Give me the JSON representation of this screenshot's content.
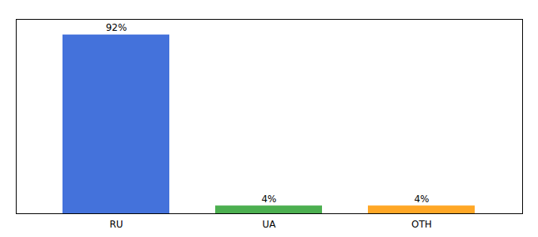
{
  "chart_data": {
    "type": "bar",
    "categories": [
      "RU",
      "UA",
      "OTH"
    ],
    "values": [
      92,
      4,
      4
    ],
    "value_labels": [
      "92%",
      "4%",
      "4%"
    ],
    "colors": [
      "#4472db",
      "#4caf50",
      "#ffa726"
    ],
    "ylim": [
      0,
      100
    ],
    "data_labels": true,
    "tick_labels": "x"
  }
}
